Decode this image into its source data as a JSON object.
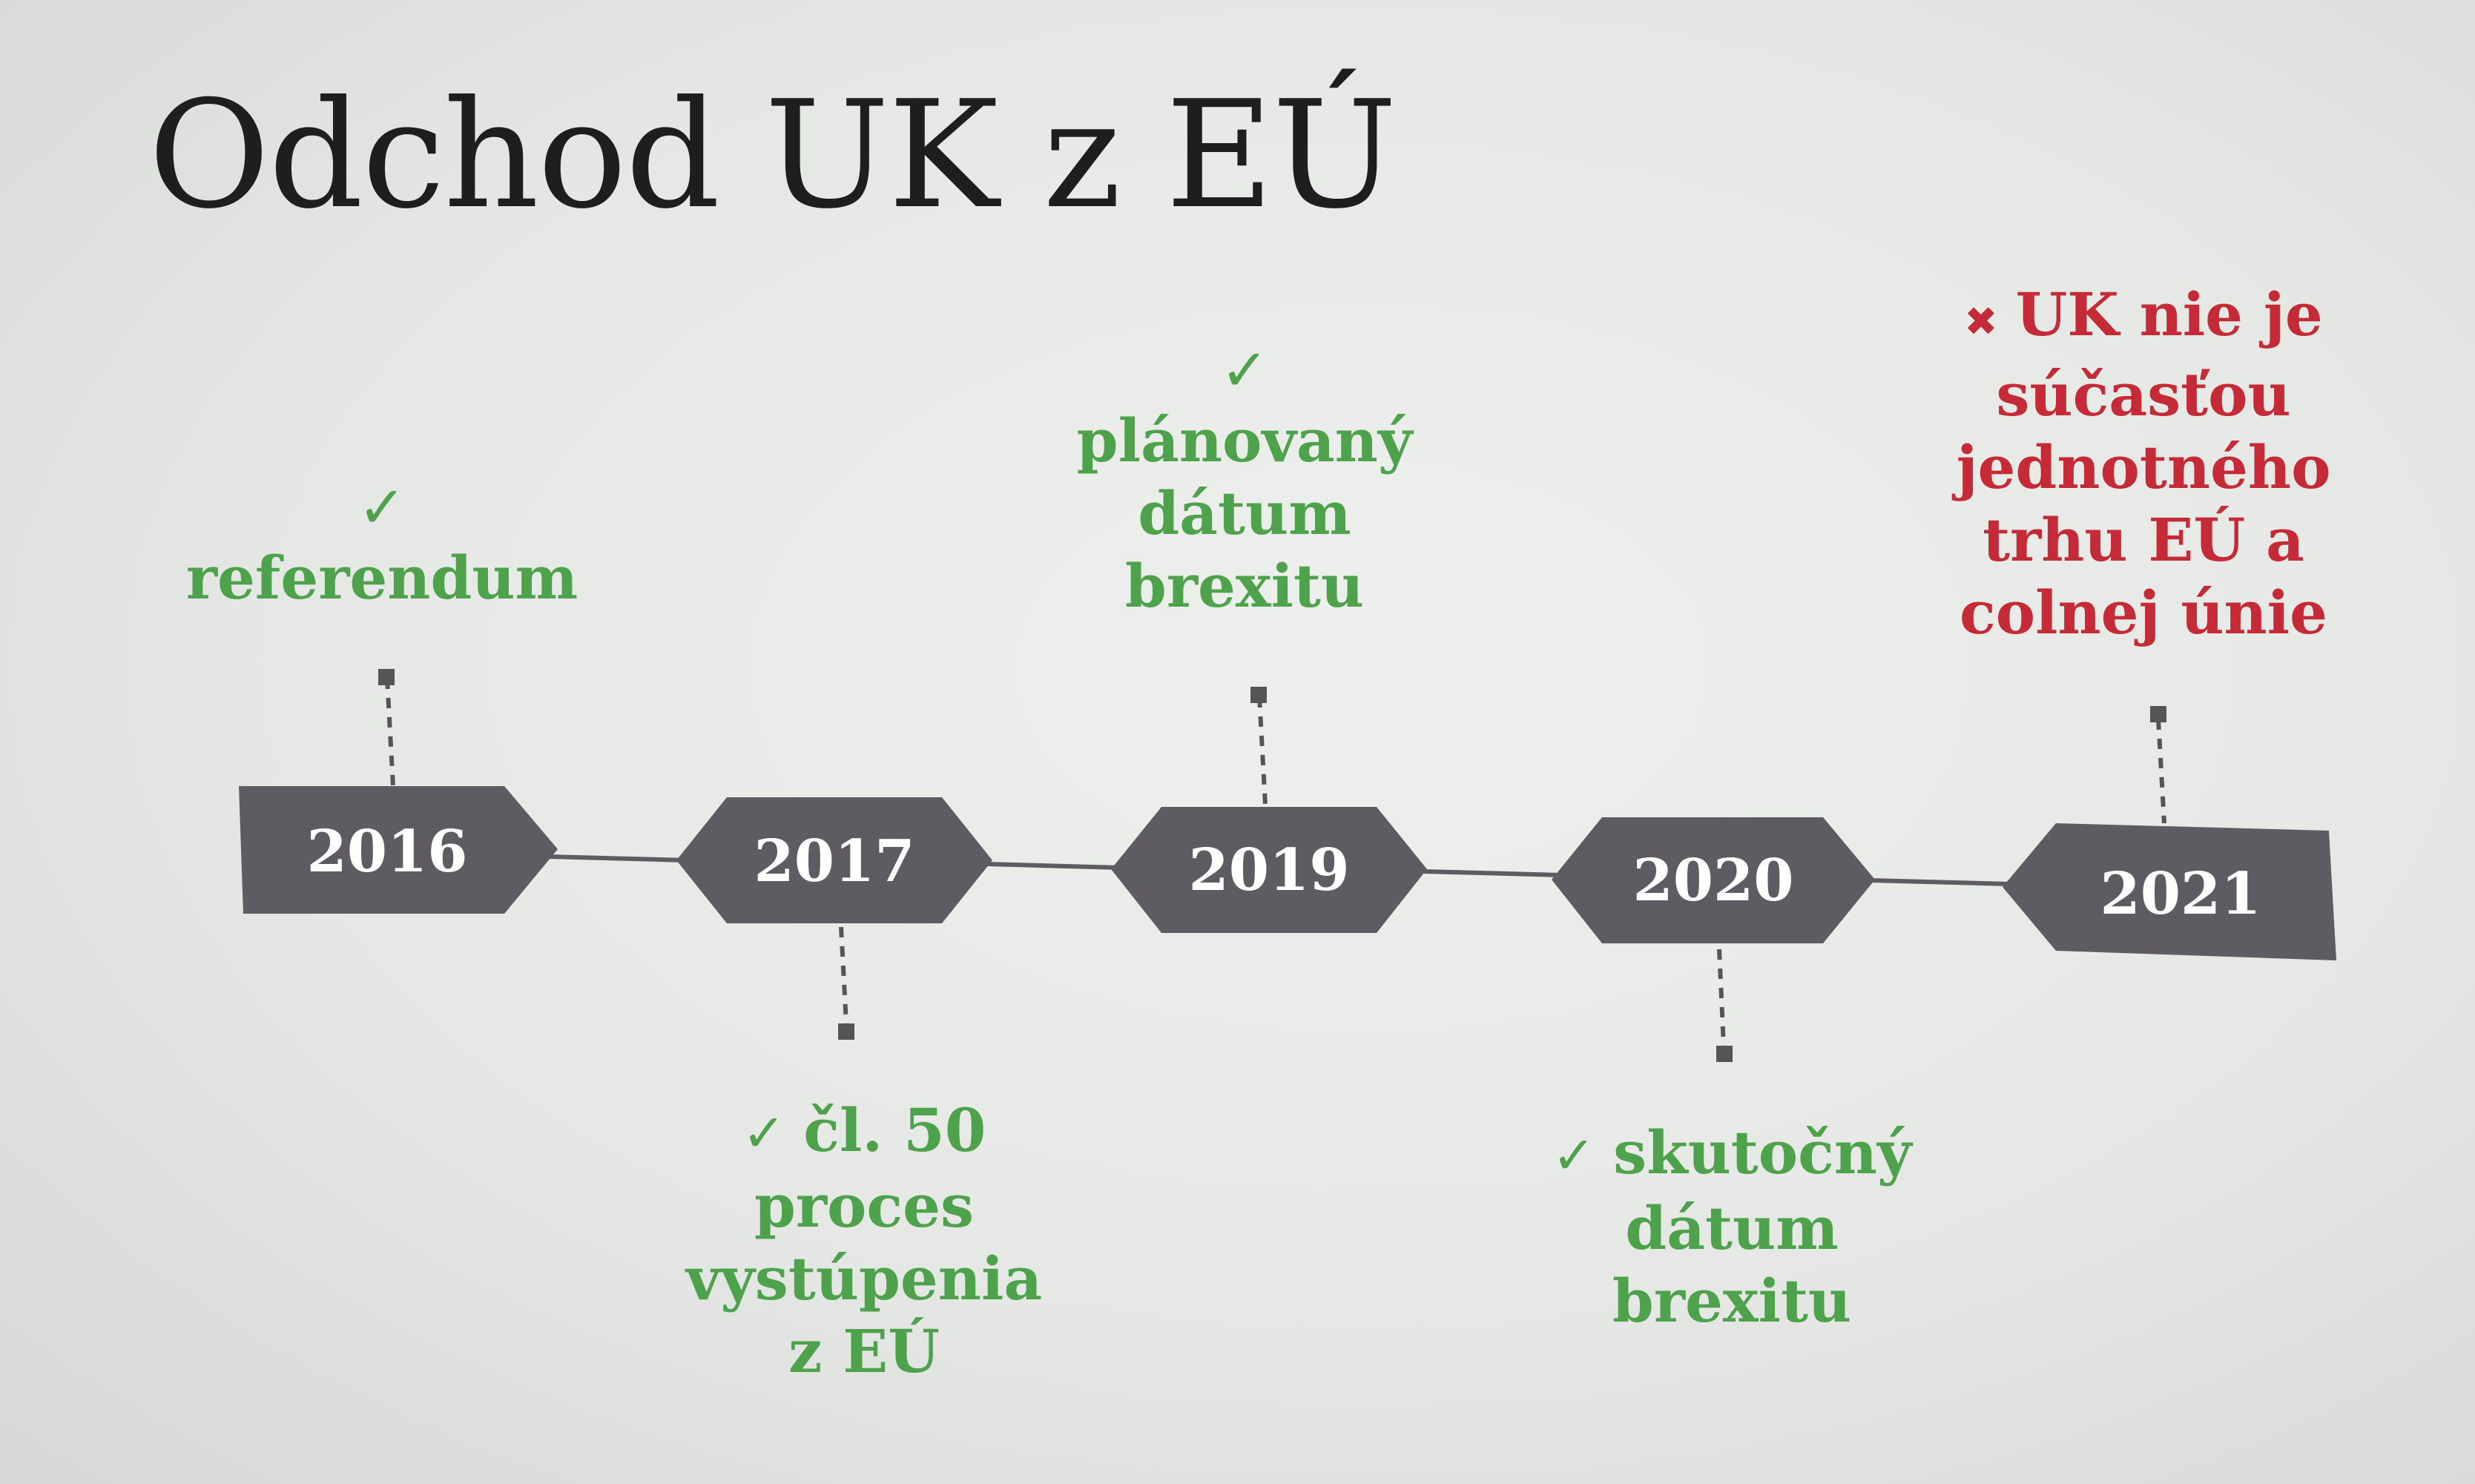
{
  "slide": {
    "title": "Odchod UK z EÚ"
  },
  "colors": {
    "done": "#4fa24c",
    "pending": "#c42b36",
    "node_fill": "#5f5b63",
    "connector": "#5f5b63",
    "year_text": "#ffffff"
  },
  "timeline": {
    "years": [
      "2016",
      "2017",
      "2019",
      "2020",
      "2021"
    ],
    "events": [
      {
        "year": "2016",
        "status": "done",
        "mark_icon": "check-icon",
        "mark": "✓",
        "lines": [
          "referendum"
        ]
      },
      {
        "year": "2017",
        "status": "done",
        "mark_icon": "check-icon",
        "mark": "✓",
        "lines": [
          "čl. 50",
          "proces",
          "vystúpenia",
          "z EÚ"
        ]
      },
      {
        "year": "2019",
        "status": "done",
        "mark_icon": "check-icon",
        "mark": "✓",
        "lines": [
          "plánovaný",
          "dátum",
          "brexitu"
        ]
      },
      {
        "year": "2020",
        "status": "done",
        "mark_icon": "check-icon",
        "mark": "✓",
        "lines": [
          "skutočný",
          "dátum",
          "brexitu"
        ]
      },
      {
        "year": "2021",
        "status": "pending",
        "mark_icon": "cross-icon",
        "mark": "✖",
        "lines": [
          "UK nie je",
          "súčasťou",
          "jednotného",
          "trhu EÚ a",
          "colnej únie"
        ]
      }
    ]
  }
}
